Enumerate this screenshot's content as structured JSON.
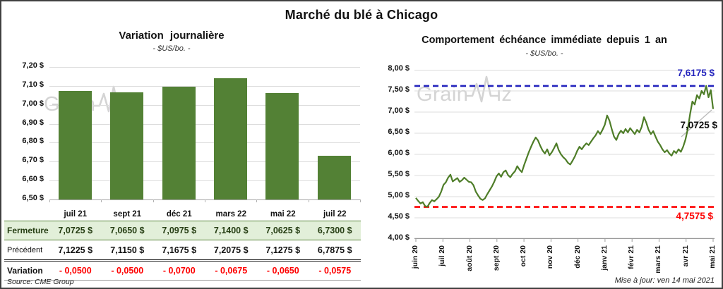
{
  "page": {
    "title": "Marché du blé à Chicago",
    "source": "Source: CME Group",
    "updated": "Mise à jour: ven 14 mai 2021",
    "watermark": {
      "part1": "Grain",
      "part2": "iz"
    }
  },
  "colors": {
    "bar_green": "#538135",
    "line_green": "#4e7d28",
    "closing_row_bg": "#e2efd9",
    "closing_row_border": "#548235",
    "max_blue": "#2323bd",
    "min_red": "#fe0000",
    "variation_red": "#fe0000",
    "gridline": "#dcdcdc",
    "axis": "#a6a6a6",
    "watermark_gray": "#d4d4d4"
  },
  "left_table": {
    "columns": [
      "juil 21",
      "sept 21",
      "déc 21",
      "mars 22",
      "mai 22",
      "juil 22"
    ],
    "rows": [
      {
        "label": "Fermeture",
        "style": "closing",
        "values": [
          "7,0725 $",
          "7,0650 $",
          "7,0975 $",
          "7,1400 $",
          "7,0625 $",
          "6,7300 $"
        ]
      },
      {
        "label": "Précédent",
        "style": "previous",
        "values": [
          "7,1225 $",
          "7,1150 $",
          "7,1675 $",
          "7,2075 $",
          "7,1275 $",
          "6,7875 $"
        ]
      },
      {
        "label": "Variation",
        "style": "variation",
        "values": [
          "- 0,0500",
          "- 0,0500",
          "- 0,0700",
          "- 0,0675",
          "- 0,0650",
          "- 0,0575"
        ]
      }
    ]
  },
  "chart_data": [
    {
      "type": "bar",
      "title": "Variation journalière",
      "subtitle": "- $US/bo. -",
      "categories": [
        "juil 21",
        "sept 21",
        "déc 21",
        "mars 22",
        "mai 22",
        "juil 22"
      ],
      "values": [
        7.0725,
        7.065,
        7.0975,
        7.14,
        7.0625,
        6.73
      ],
      "ylabel": "$US/bo.",
      "ylim": [
        6.5,
        7.2
      ],
      "ytick_step": 0.1,
      "ytick_labels": [
        "7,20 $",
        "7,10 $",
        "7,00 $",
        "6,90 $",
        "6,80 $",
        "6,70 $",
        "6,60 $",
        "6,50 $"
      ],
      "baseline": 6.5,
      "grid": true,
      "bar_color": "#538135"
    },
    {
      "type": "line",
      "title": "Comportement échéance immédiate depuis 1 an",
      "subtitle": "- $US/bo. -",
      "x_labels": [
        "juin 20",
        "juil 20",
        "août 20",
        "sept 20",
        "oct 20",
        "nov 20",
        "déc 20",
        "janv 21",
        "févr 21",
        "mars 21",
        "avr 21",
        "mai 21"
      ],
      "values": [
        4.97,
        4.9,
        4.84,
        4.87,
        4.78,
        4.76,
        4.85,
        4.92,
        4.89,
        4.94,
        5.0,
        5.12,
        5.28,
        5.34,
        5.45,
        5.52,
        5.36,
        5.4,
        5.44,
        5.35,
        5.39,
        5.45,
        5.4,
        5.35,
        5.34,
        5.27,
        5.12,
        5.03,
        4.95,
        4.92,
        4.96,
        5.06,
        5.15,
        5.24,
        5.35,
        5.48,
        5.55,
        5.47,
        5.58,
        5.62,
        5.51,
        5.46,
        5.54,
        5.6,
        5.72,
        5.64,
        5.58,
        5.75,
        5.9,
        6.05,
        6.18,
        6.3,
        6.4,
        6.33,
        6.2,
        6.09,
        6.02,
        6.12,
        5.98,
        6.05,
        6.15,
        6.26,
        6.1,
        6.0,
        5.93,
        5.88,
        5.8,
        5.76,
        5.85,
        5.95,
        6.08,
        6.18,
        6.12,
        6.2,
        6.26,
        6.22,
        6.3,
        6.38,
        6.45,
        6.55,
        6.48,
        6.58,
        6.7,
        6.92,
        6.8,
        6.6,
        6.42,
        6.34,
        6.48,
        6.56,
        6.5,
        6.6,
        6.52,
        6.62,
        6.55,
        6.48,
        6.58,
        6.52,
        6.65,
        6.88,
        6.75,
        6.58,
        6.48,
        6.55,
        6.42,
        6.3,
        6.22,
        6.12,
        6.05,
        6.1,
        6.02,
        5.97,
        6.08,
        6.03,
        6.12,
        6.06,
        6.18,
        6.35,
        6.6,
        6.95,
        7.25,
        7.18,
        7.4,
        7.32,
        7.5,
        7.42,
        7.62,
        7.35,
        7.52,
        7.0725
      ],
      "ylim": [
        4.0,
        8.0
      ],
      "ytick_step": 0.5,
      "ytick_labels": [
        "8,00 $",
        "7,50 $",
        "7,00 $",
        "6,50 $",
        "6,00 $",
        "5,50 $",
        "5,00 $",
        "4,50 $",
        "4,00 $"
      ],
      "grid": true,
      "line_color": "#4e7d28",
      "annotations": {
        "max": {
          "label": "7,6175 $",
          "value": 7.6175,
          "color": "#2323bd",
          "style": "dashed"
        },
        "min": {
          "label": "4,7575 $",
          "value": 4.7575,
          "color": "#fe0000",
          "style": "dashed"
        },
        "last": {
          "label": "7,0725 $",
          "value": 7.0725
        }
      }
    }
  ]
}
